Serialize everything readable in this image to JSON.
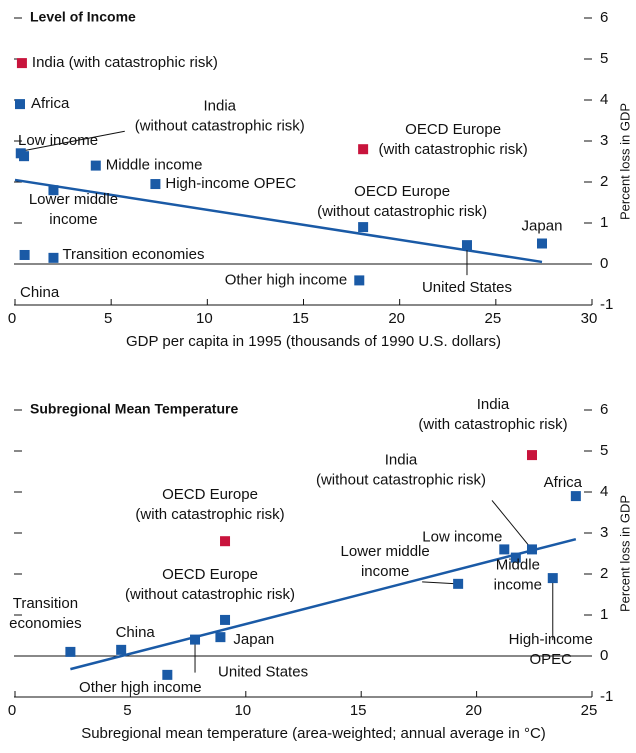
{
  "chart_data": [
    {
      "type": "scatter",
      "title": "Level of Income",
      "x_label": "GDP per capita in 1995 (thousands of 1990 U.S. dollars)",
      "y_label": "Percent loss in GDP",
      "labels": [
        [
          "India (with catastrophic risk)"
        ],
        [
          "India",
          "(without catastrophic risk)"
        ],
        [
          "Africa"
        ],
        [
          "Low income"
        ],
        [
          "Middle income"
        ],
        [
          "High-income OPEC"
        ],
        [
          "Lower middle",
          "income"
        ],
        [
          "OECD Europe",
          "(with catastrophic risk)"
        ],
        [
          "OECD Europe",
          "(without catastrophic risk)"
        ],
        [
          "Transition economies"
        ],
        [
          "China"
        ],
        [
          "Other high income"
        ],
        [
          "United States"
        ],
        [
          "Japan"
        ]
      ],
      "x": [
        0.36,
        0.3,
        0.26,
        0.47,
        4.2,
        7.3,
        2.0,
        18.1,
        18.1,
        2.0,
        0.5,
        17.9,
        23.5,
        27.4
      ],
      "values": [
        4.9,
        2.7,
        3.9,
        2.63,
        2.4,
        1.95,
        1.8,
        2.8,
        0.9,
        0.15,
        0.22,
        -0.4,
        0.46,
        0.5
      ],
      "colors": [
        "#c8143c",
        "#1a5aa6",
        "#1a5aa6",
        "#1a5aa6",
        "#1a5aa6",
        "#1a5aa6",
        "#1a5aa6",
        "#c8143c",
        "#1a5aa6",
        "#1a5aa6",
        "#1a5aa6",
        "#1a5aa6",
        "#1a5aa6",
        "#1a5aa6"
      ],
      "trendline": {
        "x": [
          0,
          27.4
        ],
        "values": [
          2.05,
          0.05
        ],
        "color": "#1a5aa6"
      },
      "xlim": [
        0,
        30
      ],
      "xticks": [
        0,
        5,
        10,
        15,
        20,
        25,
        30
      ],
      "ylim": [
        -1,
        6
      ],
      "yticks": [
        6,
        5,
        4,
        3,
        2,
        1,
        0,
        -1
      ]
    },
    {
      "type": "scatter",
      "title": "Subregional Mean Temperature",
      "x_label": "Subregional mean temperature (area-weighted; annual average in °C)",
      "y_label": "Percent loss in GDP",
      "labels": [
        [
          "India",
          "(with catastrophic risk)"
        ],
        [
          "India",
          "(without catastrophic risk)"
        ],
        [
          "Africa"
        ],
        [
          "Low income"
        ],
        [
          "Middle",
          "income"
        ],
        [
          "High-income",
          "OPEC"
        ],
        [
          "Lower middle",
          "income"
        ],
        [
          "OECD Europe",
          "(with catastrophic risk)"
        ],
        [
          "OECD Europe",
          "(without catastrophic risk)"
        ],
        [
          "Transition",
          "economies"
        ],
        [
          "China"
        ],
        [
          "Other high income"
        ],
        [
          "United States"
        ],
        [
          "Japan"
        ]
      ],
      "x": [
        22.4,
        22.4,
        24.3,
        21.2,
        21.7,
        23.3,
        19.2,
        9.1,
        9.1,
        2.4,
        4.6,
        6.6,
        7.8,
        8.9
      ],
      "values": [
        4.9,
        2.6,
        3.9,
        2.6,
        2.4,
        1.9,
        1.76,
        2.8,
        0.88,
        0.1,
        0.15,
        -0.46,
        0.4,
        0.46
      ],
      "colors": [
        "#c8143c",
        "#1a5aa6",
        "#1a5aa6",
        "#1a5aa6",
        "#1a5aa6",
        "#1a5aa6",
        "#1a5aa6",
        "#c8143c",
        "#1a5aa6",
        "#1a5aa6",
        "#1a5aa6",
        "#1a5aa6",
        "#1a5aa6",
        "#1a5aa6"
      ],
      "trendline": {
        "x": [
          2.4,
          24.3
        ],
        "values": [
          -0.32,
          2.85
        ],
        "color": "#1a5aa6"
      },
      "xlim": [
        0,
        25
      ],
      "xticks": [
        0,
        5,
        10,
        15,
        20,
        25
      ],
      "ylim": [
        -1,
        6
      ],
      "yticks": [
        6,
        5,
        4,
        3,
        2,
        1,
        0,
        -1
      ]
    }
  ]
}
